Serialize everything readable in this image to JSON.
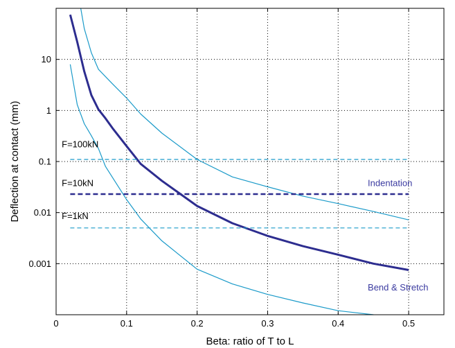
{
  "chart_data": {
    "type": "line",
    "xlabel": "Beta: ratio of T to L",
    "ylabel": "Deflection at contact (mm)",
    "xlim": [
      0,
      0.55
    ],
    "ylim": [
      0.0001,
      100
    ],
    "yscale": "log",
    "grid": true,
    "x_ticks": [
      "0",
      "0.1",
      "0.2",
      "0.3",
      "0.4",
      "0.5"
    ],
    "y_ticks": [
      {
        "value": 10,
        "label": "10"
      },
      {
        "value": 1,
        "label": "1"
      },
      {
        "value": 0.1,
        "label": "0.1"
      },
      {
        "value": 0.01,
        "label": "0.01"
      },
      {
        "value": 0.001,
        "label": "0.001"
      }
    ],
    "series": [
      {
        "kind": "bend-stretch",
        "color": "#1a9ac9",
        "x": [
          0.035,
          0.04,
          0.05,
          0.06,
          0.08,
          0.1,
          0.12,
          0.15,
          0.2,
          0.25,
          0.3,
          0.35,
          0.4,
          0.45,
          0.5
        ],
        "y": [
          100,
          40,
          13.5,
          6.4,
          3.3,
          1.75,
          0.85,
          0.36,
          0.11,
          0.05,
          0.032,
          0.021,
          0.015,
          0.0105,
          0.0072
        ]
      },
      {
        "kind": "bend-stretch",
        "color": "#2d2d8f",
        "x": [
          0.02,
          0.03,
          0.04,
          0.05,
          0.06,
          0.07,
          0.08,
          0.1,
          0.12,
          0.15,
          0.2,
          0.25,
          0.3,
          0.35,
          0.4,
          0.45,
          0.5
        ],
        "y": [
          75,
          22,
          5.8,
          2.0,
          1.05,
          0.7,
          0.45,
          0.2,
          0.09,
          0.042,
          0.0135,
          0.0062,
          0.0035,
          0.0022,
          0.0015,
          0.001,
          0.00075
        ]
      },
      {
        "kind": "bend-stretch",
        "color": "#1a9ac9",
        "x": [
          0.02,
          0.03,
          0.04,
          0.05,
          0.06,
          0.07,
          0.1,
          0.12,
          0.15,
          0.2,
          0.25,
          0.3,
          0.35,
          0.4,
          0.45
        ],
        "y": [
          8.0,
          1.3,
          0.55,
          0.32,
          0.18,
          0.08,
          0.018,
          0.0075,
          0.0028,
          0.00078,
          0.0004,
          0.00025,
          0.00017,
          0.00012,
          0.0001
        ]
      },
      {
        "kind": "indentation",
        "color": "#1a9ac9",
        "x": [
          0.02,
          0.5
        ],
        "y": [
          0.11,
          0.11
        ]
      },
      {
        "kind": "indentation",
        "color": "#2d2d8f",
        "x": [
          0.02,
          0.5
        ],
        "y": [
          0.023,
          0.023
        ]
      },
      {
        "kind": "indentation",
        "color": "#1a9ac9",
        "x": [
          0.02,
          0.5
        ],
        "y": [
          0.005,
          0.005
        ]
      }
    ],
    "annotations": [
      {
        "text": "F=100kN",
        "x": 0.008,
        "y": 0.19,
        "color": "#000000"
      },
      {
        "text": "F=10kN",
        "x": 0.008,
        "y": 0.033,
        "color": "#000000"
      },
      {
        "text": "F=1kN",
        "x": 0.008,
        "y": 0.0075,
        "color": "#000000"
      },
      {
        "text": "Indentation",
        "x": 0.442,
        "y": 0.033,
        "color": "#3a3aa0"
      },
      {
        "text": "Bend & Stretch",
        "x": 0.442,
        "y": 0.0003,
        "color": "#3a3aa0"
      }
    ]
  }
}
